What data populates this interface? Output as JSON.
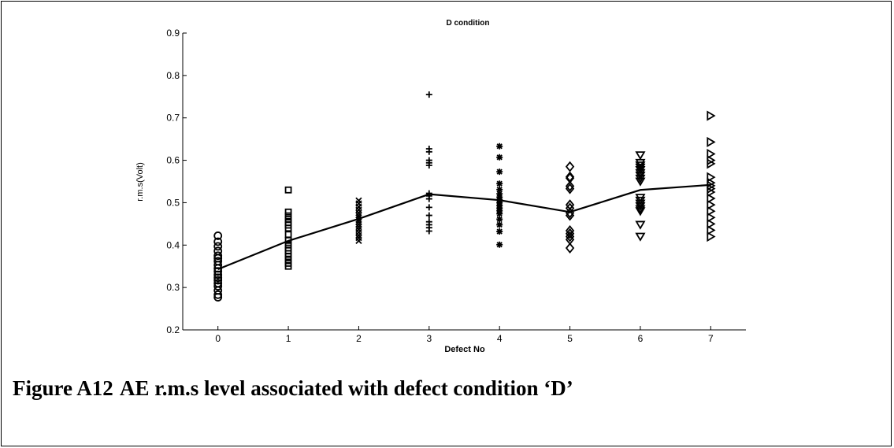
{
  "chart_data": {
    "type": "scatter",
    "title": "D condition",
    "xlabel": "Defect No",
    "ylabel": "r.m.s(Volt)",
    "xlim": [
      -0.5,
      7.5
    ],
    "ylim": [
      0.2,
      0.9
    ],
    "xticks": [
      0,
      1,
      2,
      3,
      4,
      5,
      6,
      7
    ],
    "yticks": [
      0.2,
      0.3,
      0.4,
      0.5,
      0.6,
      0.7,
      0.8,
      0.9
    ],
    "grid": false,
    "legend": "none",
    "series": [
      {
        "x": 0,
        "marker": "circle",
        "values": [
          0.422,
          0.408,
          0.397,
          0.386,
          0.375,
          0.369,
          0.362,
          0.353,
          0.345,
          0.338,
          0.33,
          0.323,
          0.317,
          0.31,
          0.303,
          0.293,
          0.283,
          0.277
        ]
      },
      {
        "x": 1,
        "marker": "square",
        "values": [
          0.53,
          0.478,
          0.469,
          0.461,
          0.453,
          0.447,
          0.44,
          0.425,
          0.411,
          0.401,
          0.393,
          0.387,
          0.38,
          0.373,
          0.365,
          0.357,
          0.35
        ]
      },
      {
        "x": 2,
        "marker": "x",
        "values": [
          0.505,
          0.498,
          0.49,
          0.483,
          0.476,
          0.47,
          0.465,
          0.46,
          0.455,
          0.449,
          0.443,
          0.437,
          0.43,
          0.423,
          0.417,
          0.41
        ]
      },
      {
        "x": 3,
        "marker": "plus",
        "values": [
          0.755,
          0.627,
          0.62,
          0.6,
          0.594,
          0.588,
          0.522,
          0.516,
          0.509,
          0.489,
          0.47,
          0.455,
          0.448,
          0.441,
          0.433
        ]
      },
      {
        "x": 4,
        "marker": "asterisk",
        "values": [
          0.633,
          0.607,
          0.573,
          0.545,
          0.531,
          0.521,
          0.513,
          0.507,
          0.5,
          0.493,
          0.487,
          0.481,
          0.474,
          0.461,
          0.448,
          0.432,
          0.401
        ]
      },
      {
        "x": 5,
        "marker": "diamond",
        "values": [
          0.585,
          0.561,
          0.558,
          0.539,
          0.533,
          0.495,
          0.487,
          0.476,
          0.47,
          0.434,
          0.427,
          0.42,
          0.413,
          0.393
        ]
      },
      {
        "x": 6,
        "marker": "triangle-down",
        "values": [
          0.612,
          0.594,
          0.588,
          0.583,
          0.577,
          0.57,
          0.564,
          0.557,
          0.55,
          0.512,
          0.505,
          0.498,
          0.492,
          0.485,
          0.48,
          0.448,
          0.42
        ]
      },
      {
        "x": 7,
        "marker": "triangle-right",
        "values": [
          0.705,
          0.643,
          0.615,
          0.6,
          0.592,
          0.56,
          0.547,
          0.54,
          0.533,
          0.525,
          0.51,
          0.495,
          0.48,
          0.465,
          0.45,
          0.435,
          0.42
        ]
      },
      {
        "type": "line",
        "x": [
          0,
          1,
          2,
          3,
          4,
          5,
          6,
          7
        ],
        "values": [
          0.343,
          0.41,
          0.462,
          0.52,
          0.506,
          0.478,
          0.53,
          0.542
        ]
      }
    ]
  },
  "caption": {
    "label": "Figure A12",
    "text": "AE r.m.s level associated with defect condition ‘D’"
  }
}
